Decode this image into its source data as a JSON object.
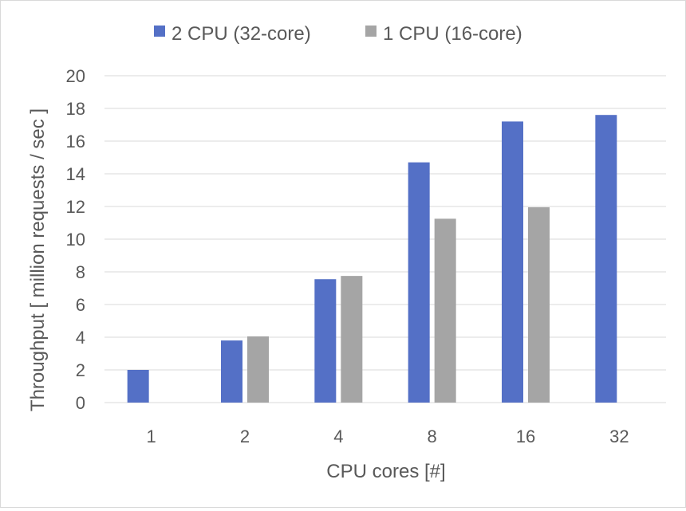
{
  "chart_data": {
    "type": "bar",
    "title": "",
    "xlabel": "CPU cores [#]",
    "ylabel": "Throughput [ million requests / sec ]",
    "categories": [
      "1",
      "2",
      "4",
      "8",
      "16",
      "32"
    ],
    "series": [
      {
        "name": "2 CPU (32-core)",
        "values": [
          2.0,
          3.8,
          7.55,
          14.7,
          17.2,
          17.6
        ]
      },
      {
        "name": "1 CPU (16-core)",
        "values": [
          null,
          4.05,
          7.75,
          11.25,
          11.95,
          null
        ]
      }
    ],
    "ylim": [
      0,
      20
    ],
    "yticks": [
      "0",
      "2",
      "4",
      "6",
      "8",
      "10",
      "12",
      "14",
      "16",
      "18",
      "20"
    ],
    "grid": "horizontal",
    "legend_position": "top",
    "colors": {
      "series_0": "#5470C6",
      "series_1": "#A5A5A5",
      "grid": "#D9D9D9",
      "text": "#595959"
    }
  }
}
